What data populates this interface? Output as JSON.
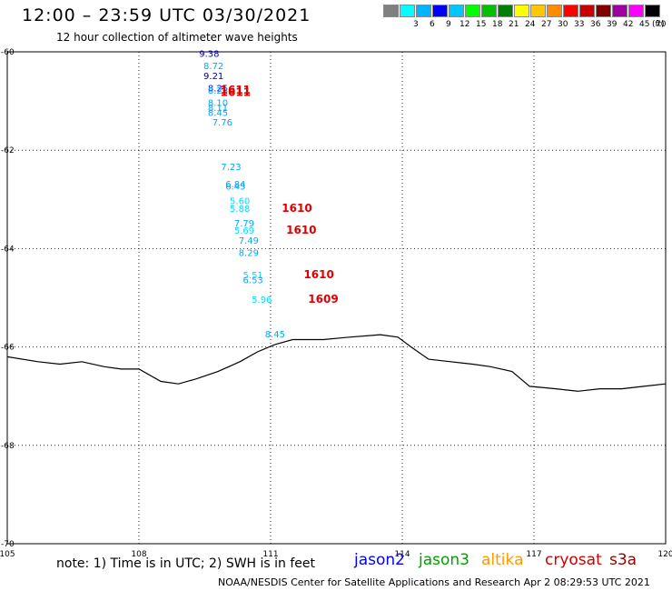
{
  "header": {
    "title": "12:00 – 23:59 UTC 03/30/2021",
    "subtitle": "12 hour collection of altimeter wave heights"
  },
  "legend": {
    "unit": "(ft)",
    "swatches": [
      {
        "label": "",
        "color": "#808080"
      },
      {
        "label": "3",
        "color": "#00ffff"
      },
      {
        "label": "6",
        "color": "#00b4ff"
      },
      {
        "label": "9",
        "color": "#0000ff"
      },
      {
        "label": "12",
        "color": "#00c8ff"
      },
      {
        "label": "15",
        "color": "#00ff00"
      },
      {
        "label": "18",
        "color": "#00c000"
      },
      {
        "label": "21",
        "color": "#008000"
      },
      {
        "label": "24",
        "color": "#ffff00"
      },
      {
        "label": "27",
        "color": "#ffc800"
      },
      {
        "label": "30",
        "color": "#ff8c00"
      },
      {
        "label": "33",
        "color": "#ff0000"
      },
      {
        "label": "36",
        "color": "#c80000"
      },
      {
        "label": "39",
        "color": "#800000"
      },
      {
        "label": "42",
        "color": "#a000a0"
      },
      {
        "label": "45",
        "color": "#ff00ff"
      },
      {
        "label": "70",
        "color": "#000000"
      }
    ]
  },
  "map": {
    "lon_range": [
      105,
      120
    ],
    "lat_range": [
      -70,
      -60
    ],
    "lon_ticks": [
      "105",
      "108",
      "111",
      "114",
      "117",
      "120"
    ],
    "lat_ticks": [
      "-60",
      "-62",
      "-64",
      "-66",
      "-68",
      "-70"
    ],
    "observations": [
      {
        "lon": 109.6,
        "lat": -60.1,
        "swh": "9.38",
        "color": "#0000c0"
      },
      {
        "lon": 109.7,
        "lat": -60.35,
        "swh": "8.72",
        "color": "#00aaff"
      },
      {
        "lon": 109.7,
        "lat": -60.55,
        "swh": "9.21",
        "color": "#000080"
      },
      {
        "lon": 109.8,
        "lat": -60.8,
        "swh": "8.25",
        "color": "#0000ff"
      },
      {
        "lon": 109.8,
        "lat": -60.85,
        "swh": "8.28",
        "color": "#00aaff"
      },
      {
        "lon": 109.8,
        "lat": -61.1,
        "swh": "8.10",
        "color": "#00aaff"
      },
      {
        "lon": 109.8,
        "lat": -61.2,
        "swh": "8.11",
        "color": "#00aaff"
      },
      {
        "lon": 109.8,
        "lat": -61.3,
        "swh": "8.45",
        "color": "#00aaff"
      },
      {
        "lon": 109.9,
        "lat": -61.5,
        "swh": "7.76",
        "color": "#00aaff"
      },
      {
        "lon": 110.1,
        "lat": -62.4,
        "swh": "7.23",
        "color": "#00aaff"
      },
      {
        "lon": 110.2,
        "lat": -62.75,
        "swh": "6.84",
        "color": "#00aaff"
      },
      {
        "lon": 110.2,
        "lat": -62.8,
        "swh": "6.45",
        "color": "#00aaff"
      },
      {
        "lon": 110.3,
        "lat": -63.1,
        "swh": "5.60",
        "color": "#00ddff"
      },
      {
        "lon": 110.3,
        "lat": -63.25,
        "swh": "5.88",
        "color": "#00ddff"
      },
      {
        "lon": 110.4,
        "lat": -63.55,
        "swh": "7.79",
        "color": "#00aaff"
      },
      {
        "lon": 110.4,
        "lat": -63.7,
        "swh": "5.69",
        "color": "#00ddff"
      },
      {
        "lon": 110.5,
        "lat": -63.9,
        "swh": "7.49",
        "color": "#00aaff"
      },
      {
        "lon": 110.5,
        "lat": -64.15,
        "swh": "8.29",
        "color": "#00aaff"
      },
      {
        "lon": 110.6,
        "lat": -64.6,
        "swh": "5.51",
        "color": "#00ddff"
      },
      {
        "lon": 110.6,
        "lat": -64.7,
        "swh": "6.53",
        "color": "#00aaff"
      },
      {
        "lon": 110.8,
        "lat": -65.1,
        "swh": "5.96",
        "color": "#00ddff"
      },
      {
        "lon": 111.1,
        "lat": -65.8,
        "swh": "8.45",
        "color": "#00aaff"
      }
    ],
    "track_times": [
      {
        "lon": 110.2,
        "lat": -60.85,
        "text": "1611"
      },
      {
        "lon": 110.2,
        "lat": -60.9,
        "text": "1611"
      },
      {
        "lon": 111.6,
        "lat": -63.25,
        "text": "1610"
      },
      {
        "lon": 111.7,
        "lat": -63.7,
        "text": "1610"
      },
      {
        "lon": 112.1,
        "lat": -64.6,
        "text": "1610"
      },
      {
        "lon": 112.2,
        "lat": -65.1,
        "text": "1609"
      }
    ],
    "coastline": [
      [
        105.0,
        -66.2
      ],
      [
        105.7,
        -66.3
      ],
      [
        106.2,
        -66.35
      ],
      [
        106.7,
        -66.3
      ],
      [
        107.2,
        -66.4
      ],
      [
        107.6,
        -66.45
      ],
      [
        108.0,
        -66.45
      ],
      [
        108.5,
        -66.7
      ],
      [
        108.9,
        -66.75
      ],
      [
        109.3,
        -66.65
      ],
      [
        109.8,
        -66.5
      ],
      [
        110.3,
        -66.3
      ],
      [
        110.7,
        -66.1
      ],
      [
        111.1,
        -65.95
      ],
      [
        111.5,
        -65.85
      ],
      [
        112.2,
        -65.85
      ],
      [
        112.8,
        -65.8
      ],
      [
        113.5,
        -65.75
      ],
      [
        113.9,
        -65.8
      ],
      [
        114.2,
        -66.0
      ],
      [
        114.6,
        -66.25
      ],
      [
        115.1,
        -66.3
      ],
      [
        115.6,
        -66.35
      ],
      [
        116.0,
        -66.4
      ],
      [
        116.5,
        -66.5
      ],
      [
        116.9,
        -66.8
      ],
      [
        117.5,
        -66.85
      ],
      [
        118.0,
        -66.9
      ],
      [
        118.5,
        -66.85
      ],
      [
        119.0,
        -66.85
      ],
      [
        119.5,
        -66.8
      ],
      [
        120.0,
        -66.75
      ]
    ]
  },
  "footer": {
    "note": "note: 1) Time is in UTC; 2) SWH is in feet",
    "credit": "NOAA/NESDIS Center for Satellite Applications and Research   Apr  2 08:29:53 UTC 2021",
    "satellites": [
      {
        "name": "jason2",
        "color": "#0000ff"
      },
      {
        "name": "jason3",
        "color": "#00a000"
      },
      {
        "name": "altika",
        "color": "#ff9900"
      },
      {
        "name": "cryosat",
        "color": "#cc0000"
      },
      {
        "name": "s3a",
        "color": "#990000"
      }
    ]
  }
}
